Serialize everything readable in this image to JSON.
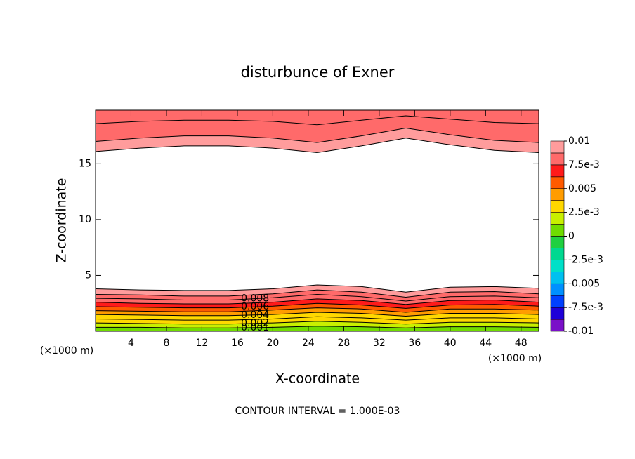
{
  "chart_data": {
    "type": "contour",
    "title": "disturbunce of Exner",
    "xlabel": "X-coordinate",
    "ylabel": "Z-coordinate",
    "x_unit": "(×1000 m)",
    "z_unit": "(×1000 m)",
    "footer": "CONTOUR INTERVAL = 1.000E-03",
    "xlim": [
      0,
      50
    ],
    "ylim": [
      0,
      19.8
    ],
    "xticks": [
      4,
      8,
      12,
      16,
      20,
      24,
      28,
      32,
      36,
      40,
      44,
      48
    ],
    "yticks": [
      5,
      10,
      15
    ],
    "x": [
      0,
      5,
      10,
      15,
      20,
      25,
      30,
      35,
      40,
      45,
      50
    ],
    "lower_contours": [
      {
        "level": 0.001,
        "z": [
          0.35,
          0.35,
          0.3,
          0.3,
          0.35,
          0.45,
          0.4,
          0.3,
          0.4,
          0.4,
          0.35
        ]
      },
      {
        "level": 0.002,
        "z": [
          0.75,
          0.7,
          0.65,
          0.65,
          0.75,
          0.9,
          0.8,
          0.65,
          0.8,
          0.8,
          0.75
        ]
      },
      {
        "level": 0.003,
        "z": [
          1.1,
          1.05,
          1.0,
          1.0,
          1.1,
          1.3,
          1.2,
          1.0,
          1.2,
          1.2,
          1.1
        ]
      },
      {
        "level": 0.004,
        "z": [
          1.5,
          1.45,
          1.4,
          1.4,
          1.5,
          1.7,
          1.6,
          1.35,
          1.6,
          1.6,
          1.5
        ]
      },
      {
        "level": 0.005,
        "z": [
          1.85,
          1.8,
          1.75,
          1.75,
          1.9,
          2.1,
          2.0,
          1.7,
          2.0,
          2.0,
          1.9
        ]
      },
      {
        "level": 0.006,
        "z": [
          2.2,
          2.15,
          2.1,
          2.1,
          2.25,
          2.5,
          2.35,
          2.05,
          2.35,
          2.4,
          2.25
        ]
      },
      {
        "level": 0.007,
        "z": [
          2.6,
          2.5,
          2.45,
          2.45,
          2.6,
          2.9,
          2.75,
          2.4,
          2.75,
          2.8,
          2.6
        ]
      },
      {
        "level": 0.008,
        "z": [
          2.95,
          2.9,
          2.8,
          2.8,
          3.0,
          3.3,
          3.1,
          2.7,
          3.1,
          3.15,
          3.0
        ]
      },
      {
        "level": 0.009,
        "z": [
          3.3,
          3.25,
          3.15,
          3.15,
          3.35,
          3.7,
          3.5,
          3.05,
          3.5,
          3.55,
          3.35
        ]
      },
      {
        "level": 0.01,
        "z": [
          3.8,
          3.7,
          3.65,
          3.65,
          3.8,
          4.15,
          4.0,
          3.5,
          3.95,
          4.0,
          3.85
        ]
      }
    ],
    "upper_contours": [
      {
        "level": 0.01,
        "z": [
          16.1,
          16.4,
          16.6,
          16.6,
          16.4,
          16.0,
          16.6,
          17.3,
          16.7,
          16.2,
          16.0
        ]
      },
      {
        "level": 0.009,
        "z": [
          17.0,
          17.3,
          17.5,
          17.5,
          17.3,
          16.9,
          17.5,
          18.2,
          17.6,
          17.1,
          16.9
        ]
      },
      {
        "level": 0.008,
        "z": [
          18.6,
          18.8,
          18.9,
          18.9,
          18.8,
          18.5,
          18.9,
          19.3,
          19.0,
          18.7,
          18.6
        ]
      }
    ],
    "contour_labels": [
      {
        "value": 0.008,
        "label": "0.008"
      },
      {
        "value": 0.006,
        "label": "0.006"
      },
      {
        "value": 0.004,
        "label": "0.004"
      },
      {
        "value": 0.002,
        "label": "0.002"
      },
      {
        "value": 0.001,
        "label": "0.001"
      }
    ],
    "colorbar": {
      "lim": [
        -0.01,
        0.01
      ],
      "colors": [
        "#7a10c8",
        "#1e00d8",
        "#0040ff",
        "#0090ff",
        "#00c0f0",
        "#00e0c8",
        "#00d890",
        "#20d040",
        "#70dc00",
        "#c8f000",
        "#ffd800",
        "#ff9c00",
        "#ff5a00",
        "#ff1a1a",
        "#ff6a6a",
        "#ff9c9c"
      ],
      "ticks": [
        0.01,
        {
          "value": 0.0075,
          "label": "7.5e-3"
        },
        0.005,
        {
          "value": 0.0025,
          "label": "2.5e-3"
        },
        0,
        {
          "value": -0.0025,
          "label": "-2.5e-3"
        },
        -0.005,
        {
          "value": -0.0075,
          "label": "-7.5e-3"
        },
        -0.01
      ]
    }
  }
}
